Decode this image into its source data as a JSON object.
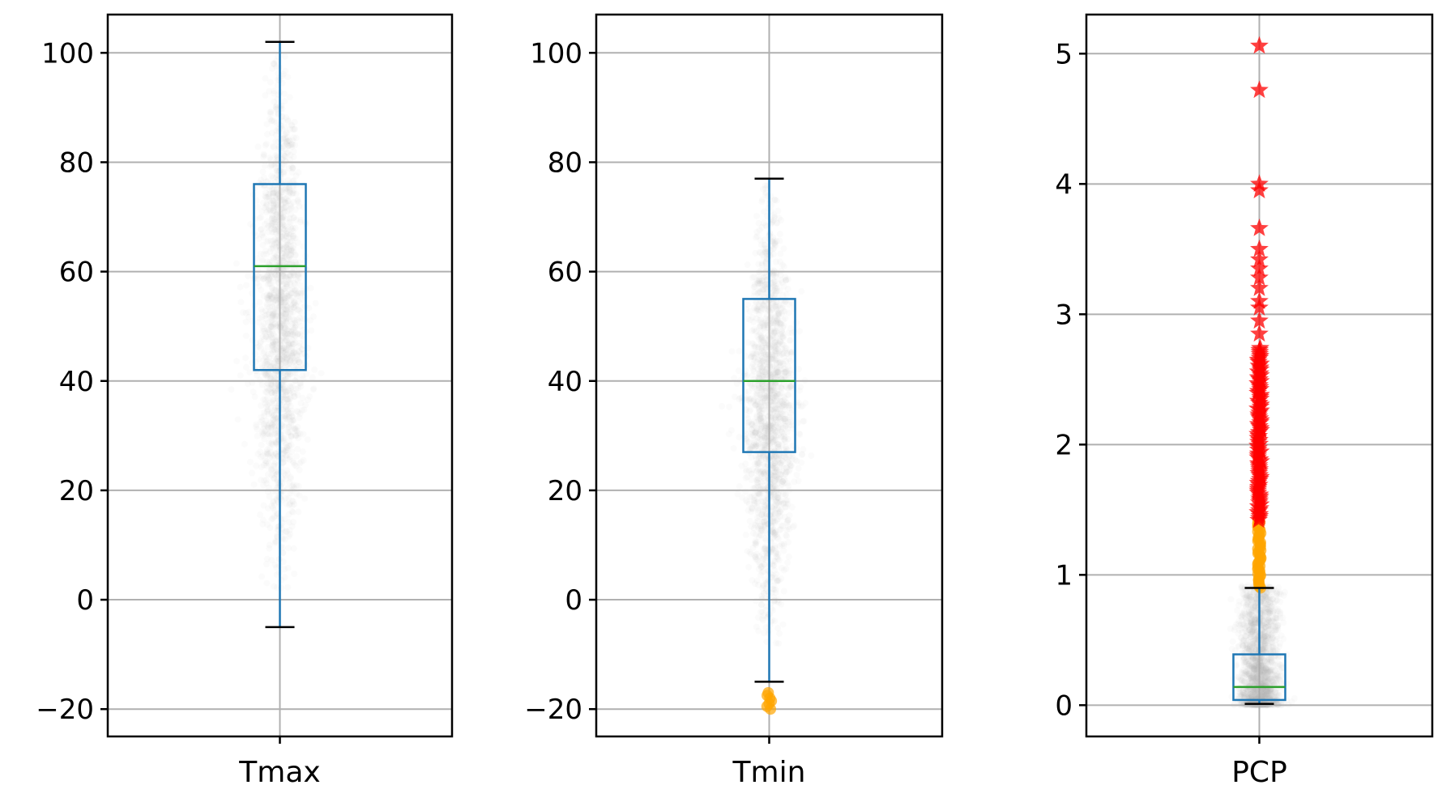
{
  "chart_data": [
    {
      "type": "box",
      "category": "Tmax",
      "ylim": [
        -25,
        107
      ],
      "yticks": [
        -20,
        0,
        20,
        40,
        60,
        80,
        100
      ],
      "grid": true,
      "box": {
        "whisker_low": -5,
        "q1": 42,
        "median": 61,
        "q3": 76,
        "whisker_high": 102
      },
      "scatter_spread": {
        "low": 5,
        "high": 97
      },
      "outliers_low": [],
      "outliers_high": []
    },
    {
      "type": "box",
      "category": "Tmin",
      "ylim": [
        -25,
        107
      ],
      "yticks": [
        -20,
        0,
        20,
        40,
        60,
        80,
        100
      ],
      "grid": true,
      "box": {
        "whisker_low": -15,
        "q1": 27,
        "median": 40,
        "q3": 55,
        "whisker_high": 77
      },
      "scatter_spread": {
        "low": -5,
        "high": 73
      },
      "outliers_low": [
        -17,
        -17.5,
        -18,
        -18.5,
        -19,
        -19.5,
        -20
      ],
      "outliers_high": []
    },
    {
      "type": "box",
      "category": "PCP",
      "ylim": [
        -0.24,
        5.3
      ],
      "yticks": [
        0,
        1,
        2,
        3,
        4,
        5
      ],
      "grid": true,
      "box": {
        "whisker_low": 0.01,
        "q1": 0.04,
        "median": 0.14,
        "q3": 0.39,
        "whisker_high": 0.9
      },
      "scatter_spread": {
        "low": 0.0,
        "high": 0.92
      },
      "outliers_mild_range": [
        0.9,
        1.42
      ],
      "outliers_extreme_dense_range": [
        1.42,
        2.75
      ],
      "outliers_extreme": [
        2.85,
        2.95,
        3.05,
        3.1,
        3.2,
        3.28,
        3.35,
        3.42,
        3.5,
        3.66,
        3.95,
        4.0,
        4.72,
        5.06
      ]
    }
  ],
  "colors": {
    "box": "#1f77b4",
    "median": "#2ca02c",
    "whisker_cap": "#000000",
    "scatter": "#a9a9a9",
    "mild_outlier": "#ffa500",
    "extreme_outlier": "#ff0000"
  }
}
